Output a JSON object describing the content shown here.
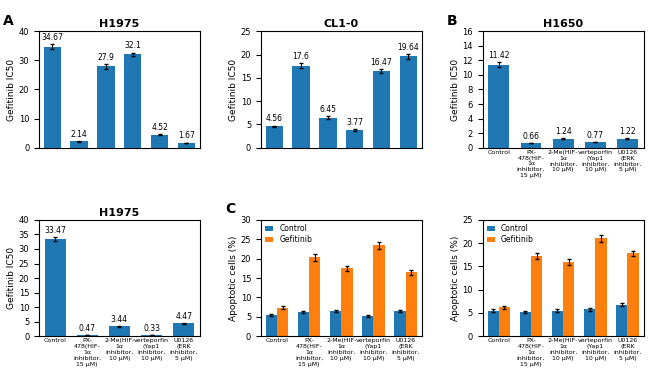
{
  "chart_data": [
    {
      "type": "bar",
      "title": "H1975",
      "annotations": [
        "A"
      ],
      "categories": [
        null,
        null,
        null,
        null,
        null,
        null
      ],
      "tick_labels": "y",
      "y_label": "Gefitinib IC50",
      "series": [
        {
          "values": [
            34.67,
            2.14,
            27.9,
            32.1,
            4.52,
            1.67
          ],
          "errors": [
            0.8,
            0.1,
            0.7,
            0.6,
            0.2,
            0.1
          ]
        }
      ],
      "data_labels": true,
      "ylim": [
        0,
        40
      ],
      "yticks": [
        0,
        10,
        20,
        30,
        40
      ]
    },
    {
      "type": "bar",
      "title": "CL1-0",
      "categories": [
        null,
        null,
        null,
        null,
        null,
        null
      ],
      "tick_labels": "y",
      "y_label": "Gefitinib IC50",
      "series": [
        {
          "values": [
            4.56,
            17.6,
            6.45,
            3.77,
            16.47,
            19.64
          ],
          "errors": [
            0.2,
            0.5,
            0.3,
            0.2,
            0.4,
            0.5
          ]
        }
      ],
      "data_labels": true,
      "ylim": [
        0,
        25
      ],
      "yticks": [
        0,
        5,
        10,
        15,
        20,
        25
      ]
    },
    {
      "type": "bar",
      "title": "H1650",
      "annotations": [
        "B"
      ],
      "categories": [
        "Control",
        "PX-\n478(HIF-\n1α\ninhibitor,\n15 μM)",
        "2-Me(HIF-\n1α\ninhibitor,\n10 μM)",
        "verteporfin\n(Yap1\ninhibitor,\n10 μM)",
        "U0126\n(ERK\ninhibitor,\n5 μM)"
      ],
      "y_label": "Gefitinib IC50",
      "series": [
        {
          "values": [
            11.42,
            0.66,
            1.24,
            0.77,
            1.22
          ],
          "errors": [
            0.3,
            0.04,
            0.08,
            0.04,
            0.06
          ]
        }
      ],
      "data_labels": true,
      "ylim": [
        0,
        16
      ],
      "yticks": [
        0,
        2,
        4,
        6,
        8,
        10,
        12,
        14,
        16
      ]
    },
    {
      "type": "bar",
      "title": "H1975",
      "categories": [
        "Control",
        "PX-\n478(HIF-\n1α\ninhibitor,\n15 μM)",
        "2-Me(HIF-\n1α\ninhibitor,\n10 μM)",
        "verteporfin\n(Yap1\ninhibitor,\n10 μM)",
        "U0126\n(ERK\ninhibitor,\n5 μM)"
      ],
      "y_label": "Gefitinib IC50",
      "series": [
        {
          "values": [
            33.47,
            0.47,
            3.44,
            0.33,
            4.47
          ],
          "errors": [
            0.6,
            0.03,
            0.15,
            0.03,
            0.2
          ]
        }
      ],
      "data_labels": true,
      "ylim": [
        0,
        40
      ],
      "yticks": [
        0,
        5,
        10,
        15,
        20,
        25,
        30,
        35,
        40
      ]
    },
    {
      "type": "bar",
      "annotations": [
        "C"
      ],
      "categories": [
        "Control",
        "PX-\n478(HIF-\n1α\ninhibitor,\n15 μM)",
        "2-Me(HIF-\n1α\ninhibitor,\n10 μM)",
        "verteporfin\n(Yap1\ninhibitor,\n10 μM)",
        "U0126\n(ERK\ninhibitor,\n5 μM)"
      ],
      "y_label": "Apoptotic cells (%)",
      "series": [
        {
          "name": "Control",
          "values": [
            5.5,
            6.2,
            6.5,
            5.2,
            6.5
          ],
          "errors": [
            0.3,
            0.3,
            0.3,
            0.3,
            0.3
          ]
        },
        {
          "name": "Gefitinib",
          "values": [
            7.3,
            20.3,
            17.5,
            23.5,
            16.5
          ],
          "errors": [
            0.4,
            0.8,
            0.6,
            0.9,
            0.6
          ]
        }
      ],
      "legend": "upper left",
      "ylim": [
        0,
        30
      ],
      "yticks": [
        0,
        5,
        10,
        15,
        20,
        25,
        30
      ]
    },
    {
      "type": "bar",
      "categories": [
        "Control",
        "PX-\n478(HIF-\n1α\ninhibitor,\n15 μM)",
        "2-Me(HIF-\n1α\ninhibitor,\n10 μM)",
        "verteporfin\n(Yap1\ninhibitor,\n10 μM)",
        "U0126\n(ERK\ninhibitor,\n5 μM)"
      ],
      "y_label": "Apoptotic cells (%)",
      "series": [
        {
          "name": "Control",
          "values": [
            5.5,
            5.2,
            5.5,
            5.8,
            6.8
          ],
          "errors": [
            0.3,
            0.3,
            0.3,
            0.3,
            0.3
          ]
        },
        {
          "name": "Gefitinib",
          "values": [
            6.2,
            17.2,
            16.0,
            21.0,
            17.8
          ],
          "errors": [
            0.3,
            0.6,
            0.6,
            0.8,
            0.6
          ]
        }
      ],
      "legend": "upper left",
      "ylim": [
        0,
        25
      ],
      "yticks": [
        0,
        5,
        10,
        15,
        20,
        25
      ]
    }
  ]
}
